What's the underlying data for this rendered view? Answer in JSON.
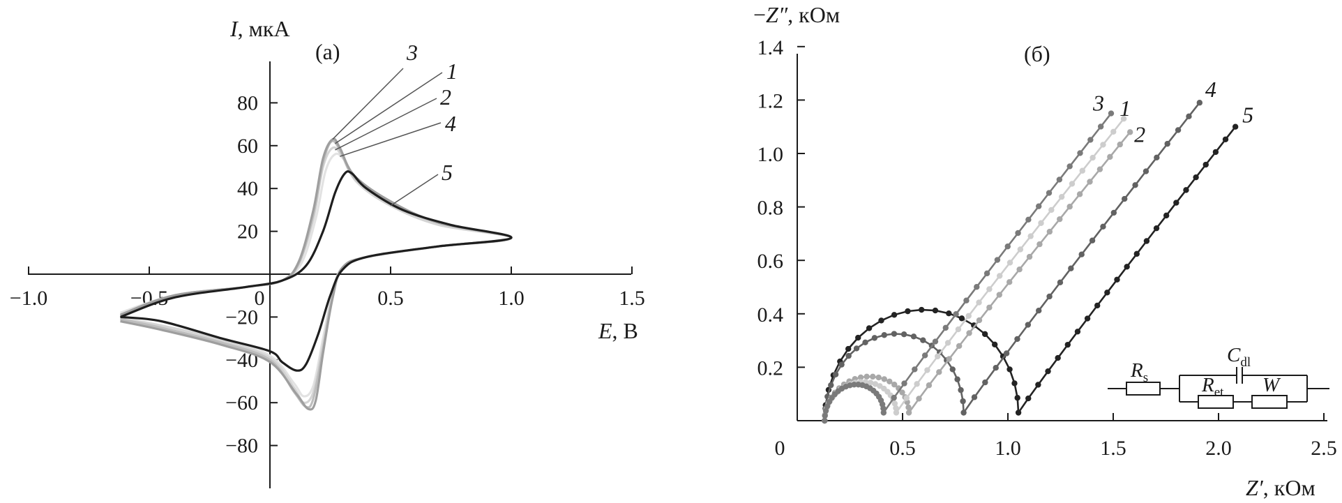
{
  "chart_data": [
    {
      "panel": "(а)",
      "type": "line",
      "xlabel": "E, В",
      "ylabel": "I, мкА",
      "xlim": [
        -1.0,
        1.5
      ],
      "ylim": [
        -80,
        80
      ],
      "xticks": [
        "−1.0",
        "−0.5",
        "0",
        "0.5",
        "1.0",
        "1.5"
      ],
      "yticks": [
        "80",
        "60",
        "40",
        "20",
        "−20",
        "−40",
        "−60",
        "−80"
      ],
      "curve_labels": [
        "3",
        "1",
        "2",
        "4",
        "5"
      ],
      "series": [
        {
          "name": "1",
          "color": "#bdbdbd",
          "anodic_peak": [
            0.27,
            62
          ],
          "cathodic_peak": [
            0.15,
            -62
          ],
          "upper": [
            [
              -0.62,
              -19
            ],
            [
              -0.4,
              -10
            ],
            [
              -0.1,
              -6
            ],
            [
              0.05,
              -3
            ],
            [
              0.12,
              5
            ],
            [
              0.18,
              28
            ],
            [
              0.22,
              52
            ],
            [
              0.255,
              62
            ],
            [
              0.29,
              58
            ],
            [
              0.35,
              45
            ],
            [
              0.5,
              33
            ],
            [
              0.7,
              24
            ],
            [
              1.0,
              17
            ]
          ],
          "lower": [
            [
              1.0,
              17
            ],
            [
              0.7,
              13
            ],
            [
              0.4,
              8
            ],
            [
              0.3,
              3
            ],
            [
              0.26,
              -10
            ],
            [
              0.22,
              -35
            ],
            [
              0.18,
              -58
            ],
            [
              0.15,
              -62
            ],
            [
              0.1,
              -55
            ],
            [
              0.0,
              -40
            ],
            [
              -0.2,
              -32
            ],
            [
              -0.45,
              -25
            ],
            [
              -0.62,
              -21
            ]
          ]
        },
        {
          "name": "2",
          "color": "#d4d4d4",
          "anodic_peak": [
            0.27,
            59
          ],
          "cathodic_peak": [
            0.14,
            -60
          ],
          "upper": [
            [
              -0.62,
              -19
            ],
            [
              -0.4,
              -10
            ],
            [
              -0.1,
              -6
            ],
            [
              0.05,
              -3
            ],
            [
              0.12,
              5
            ],
            [
              0.18,
              26
            ],
            [
              0.22,
              50
            ],
            [
              0.26,
              59
            ],
            [
              0.3,
              55
            ],
            [
              0.36,
              43
            ],
            [
              0.5,
              32
            ],
            [
              0.7,
              23
            ],
            [
              1.0,
              17
            ]
          ],
          "lower": [
            [
              1.0,
              17
            ],
            [
              0.7,
              13
            ],
            [
              0.4,
              8
            ],
            [
              0.3,
              3
            ],
            [
              0.26,
              -9
            ],
            [
              0.22,
              -33
            ],
            [
              0.18,
              -55
            ],
            [
              0.14,
              -60
            ],
            [
              0.1,
              -53
            ],
            [
              0.0,
              -39
            ],
            [
              -0.2,
              -31
            ],
            [
              -0.45,
              -24
            ],
            [
              -0.62,
              -21
            ]
          ]
        },
        {
          "name": "3",
          "color": "#9e9e9e",
          "anodic_peak": [
            0.26,
            63
          ],
          "cathodic_peak": [
            0.16,
            -63
          ],
          "upper": [
            [
              -0.62,
              -19
            ],
            [
              -0.4,
              -10
            ],
            [
              -0.1,
              -6
            ],
            [
              0.05,
              -3
            ],
            [
              0.12,
              6
            ],
            [
              0.18,
              30
            ],
            [
              0.22,
              54
            ],
            [
              0.26,
              63
            ],
            [
              0.29,
              59
            ],
            [
              0.35,
              46
            ],
            [
              0.5,
              34
            ],
            [
              0.7,
              24
            ],
            [
              1.0,
              17
            ]
          ],
          "lower": [
            [
              1.0,
              17
            ],
            [
              0.7,
              13
            ],
            [
              0.4,
              8
            ],
            [
              0.3,
              3
            ],
            [
              0.26,
              -11
            ],
            [
              0.22,
              -37
            ],
            [
              0.19,
              -59
            ],
            [
              0.16,
              -63
            ],
            [
              0.11,
              -56
            ],
            [
              0.0,
              -41
            ],
            [
              -0.2,
              -33
            ],
            [
              -0.45,
              -26
            ],
            [
              -0.62,
              -22
            ]
          ]
        },
        {
          "name": "4",
          "color": "#e2e2e2",
          "anodic_peak": [
            0.28,
            56
          ],
          "cathodic_peak": [
            0.14,
            -57
          ],
          "upper": [
            [
              -0.62,
              -18
            ],
            [
              -0.4,
              -10
            ],
            [
              -0.1,
              -6
            ],
            [
              0.05,
              -3
            ],
            [
              0.13,
              5
            ],
            [
              0.19,
              26
            ],
            [
              0.23,
              48
            ],
            [
              0.27,
              56
            ],
            [
              0.31,
              53
            ],
            [
              0.37,
              42
            ],
            [
              0.5,
              32
            ],
            [
              0.7,
              23
            ],
            [
              1.0,
              17
            ]
          ],
          "lower": [
            [
              1.0,
              17
            ],
            [
              0.7,
              13
            ],
            [
              0.4,
              8
            ],
            [
              0.3,
              3
            ],
            [
              0.26,
              -8
            ],
            [
              0.22,
              -30
            ],
            [
              0.18,
              -52
            ],
            [
              0.14,
              -57
            ],
            [
              0.1,
              -51
            ],
            [
              0.0,
              -38
            ],
            [
              -0.2,
              -30
            ],
            [
              -0.45,
              -24
            ],
            [
              -0.62,
              -20
            ]
          ]
        },
        {
          "name": "5",
          "color": "#1e1e1e",
          "anodic_peak": [
            0.32,
            48
          ],
          "cathodic_peak": [
            0.11,
            -45
          ],
          "upper": [
            [
              -0.62,
              -20
            ],
            [
              -0.4,
              -11
            ],
            [
              -0.1,
              -6
            ],
            [
              0.05,
              -3
            ],
            [
              0.15,
              4
            ],
            [
              0.22,
              20
            ],
            [
              0.27,
              38
            ],
            [
              0.31,
              47
            ],
            [
              0.34,
              47
            ],
            [
              0.4,
              40
            ],
            [
              0.55,
              30
            ],
            [
              0.75,
              23
            ],
            [
              1.0,
              17
            ]
          ],
          "lower": [
            [
              1.0,
              17
            ],
            [
              0.7,
              13
            ],
            [
              0.4,
              8
            ],
            [
              0.3,
              2
            ],
            [
              0.25,
              -10
            ],
            [
              0.2,
              -28
            ],
            [
              0.15,
              -42
            ],
            [
              0.11,
              -45
            ],
            [
              0.05,
              -41
            ],
            [
              0.0,
              -36
            ],
            [
              -0.2,
              -30
            ],
            [
              -0.45,
              -22
            ],
            [
              -0.62,
              -20
            ]
          ]
        }
      ]
    },
    {
      "panel": "(б)",
      "type": "scatter",
      "xlabel": "Z′, кОм",
      "ylabel": "−Z″, кОм",
      "xlim": [
        0,
        2.5
      ],
      "ylim": [
        0,
        1.4
      ],
      "xticks": [
        "0",
        "0.5",
        "1.0",
        "1.5",
        "2.0",
        "2.5"
      ],
      "yticks": [
        "1.4",
        "1.2",
        "1.0",
        "0.8",
        "0.6",
        "0.4",
        "0.2"
      ],
      "curve_labels": [
        "3",
        "1",
        "2",
        "4",
        "5"
      ],
      "series": [
        {
          "name": "1",
          "color": "#cdcdcd",
          "Rs": 0.13,
          "Ret": 0.34,
          "arc_height": 0.13,
          "end": [
            1.55,
            1.13
          ]
        },
        {
          "name": "2",
          "color": "#a8a8a8",
          "Rs": 0.13,
          "Ret": 0.4,
          "arc_height": 0.15,
          "end": [
            1.58,
            1.08
          ]
        },
        {
          "name": "3",
          "color": "#7a7a7a",
          "Rs": 0.13,
          "Ret": 0.28,
          "arc_height": 0.12,
          "end": [
            1.49,
            1.15
          ]
        },
        {
          "name": "4",
          "color": "#626262",
          "Rs": 0.13,
          "Ret": 0.66,
          "arc_height": 0.31,
          "end": [
            1.91,
            1.19
          ]
        },
        {
          "name": "5",
          "color": "#232323",
          "Rs": 0.13,
          "Ret": 0.92,
          "arc_height": 0.4,
          "end": [
            2.08,
            1.1
          ]
        }
      ],
      "circuit": {
        "Rs": "R",
        "Rs_sub": "s",
        "Cdl": "C",
        "Cdl_sub": "dl",
        "Ret": "R",
        "Ret_sub": "et",
        "W": "W"
      }
    }
  ]
}
